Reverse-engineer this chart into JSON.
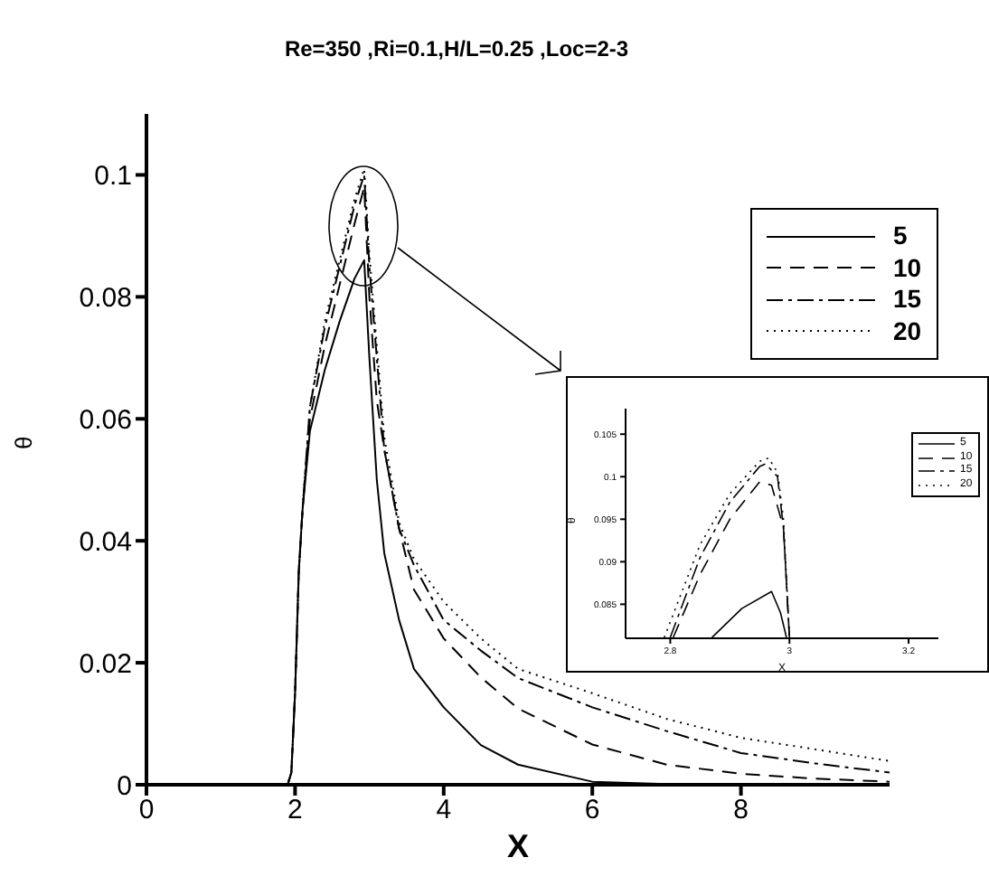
{
  "chart_data": [
    {
      "type": "line",
      "title": "Re=350 ,Ri=0.1,H/L=0.25 ,Loc=2-3",
      "xlabel": "X",
      "ylabel": "θ",
      "x": [
        0,
        1.9,
        1.95,
        2,
        2.05,
        2.1,
        2.2,
        2.4,
        2.6,
        2.8,
        2.93,
        3,
        3.1,
        3.2,
        3.4,
        3.6,
        4,
        4.5,
        5,
        6,
        7,
        8,
        9,
        10
      ],
      "series": [
        {
          "name": "5",
          "color": "#000000",
          "line_style": "solid",
          "values": [
            0,
            0,
            0.002,
            0.015,
            0.035,
            0.045,
            0.058,
            0.068,
            0.076,
            0.083,
            0.086,
            0.07,
            0.05,
            0.038,
            0.027,
            0.019,
            0.0127,
            0.0065,
            0.0033,
            0.0005,
            0.0001,
            0,
            0,
            0
          ]
        },
        {
          "name": "10",
          "color": "#000000",
          "line_style": "dashed",
          "values": [
            0,
            0,
            0.002,
            0.015,
            0.035,
            0.045,
            0.06,
            0.072,
            0.082,
            0.092,
            0.098,
            0.08,
            0.063,
            0.055,
            0.042,
            0.032,
            0.024,
            0.0176,
            0.0125,
            0.0066,
            0.0033,
            0.0018,
            0.001,
            0.0005
          ]
        },
        {
          "name": "15",
          "color": "#000000",
          "line_style": "dashdot",
          "values": [
            0,
            0,
            0.002,
            0.015,
            0.035,
            0.045,
            0.062,
            0.075,
            0.085,
            0.095,
            0.1,
            0.085,
            0.07,
            0.055,
            0.042,
            0.036,
            0.027,
            0.022,
            0.0175,
            0.0127,
            0.0088,
            0.0052,
            0.0035,
            0.002
          ]
        },
        {
          "name": "20",
          "color": "#000000",
          "line_style": "dotted",
          "values": [
            0,
            0,
            0.002,
            0.015,
            0.035,
            0.045,
            0.062,
            0.076,
            0.086,
            0.096,
            0.101,
            0.087,
            0.072,
            0.057,
            0.043,
            0.037,
            0.03,
            0.024,
            0.019,
            0.015,
            0.0108,
            0.0077,
            0.0058,
            0.0039
          ]
        }
      ],
      "xlim": [
        0,
        10
      ],
      "xticks": [
        0,
        2,
        4,
        6,
        8
      ],
      "ylim": [
        0,
        0.11
      ],
      "yticks": [
        0,
        0.02,
        0.04,
        0.06,
        0.08,
        0.1
      ],
      "grid": false,
      "legend": "top right"
    },
    {
      "type": "line",
      "xlabel": "X",
      "ylabel": "θ",
      "series": [
        {
          "name": "5",
          "color": "#000000",
          "line_style": "solid",
          "x": [
            2.87,
            2.92,
            2.97,
            2.985,
            2.995
          ],
          "values": [
            0.0811,
            0.0845,
            0.0865,
            0.084,
            0.0811
          ]
        },
        {
          "name": "10",
          "color": "#000000",
          "line_style": "dashed",
          "x": [
            2.805,
            2.85,
            2.9,
            2.95,
            2.97,
            2.99,
            3.0
          ],
          "values": [
            0.0811,
            0.0885,
            0.095,
            0.0994,
            0.099,
            0.094,
            0.0811
          ]
        },
        {
          "name": "15",
          "color": "#000000",
          "line_style": "dashdot",
          "x": [
            2.8,
            2.85,
            2.9,
            2.95,
            2.96,
            2.98,
            2.99,
            3.0
          ],
          "values": [
            0.0811,
            0.0905,
            0.097,
            0.1012,
            0.1015,
            0.1,
            0.094,
            0.0811
          ]
        },
        {
          "name": "20",
          "color": "#000000",
          "line_style": "dotted",
          "x": [
            2.79,
            2.85,
            2.9,
            2.95,
            2.965,
            2.98,
            2.99,
            3.0
          ],
          "values": [
            0.0811,
            0.092,
            0.098,
            0.1018,
            0.1022,
            0.1005,
            0.095,
            0.0811
          ]
        }
      ],
      "xlim": [
        2.725,
        3.25
      ],
      "xticks": [
        2.8,
        3,
        3.2
      ],
      "ylim": [
        0.081,
        0.108
      ],
      "yticks": [
        0.085,
        0.09,
        0.095,
        0.1,
        0.105
      ],
      "grid": false,
      "legend": "top right"
    }
  ]
}
